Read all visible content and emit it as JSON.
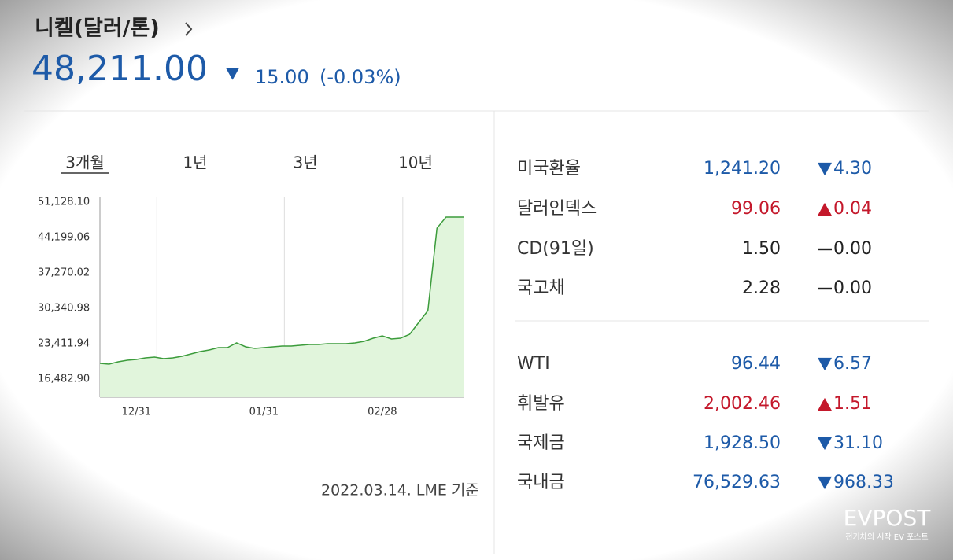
{
  "header": {
    "title": "니켈(달러/톤)",
    "price": "48,211.00",
    "direction": "down",
    "change": "15.00",
    "change_pct": "(-0.03%)"
  },
  "tabs": {
    "items": [
      "3개월",
      "1년",
      "3년",
      "10년"
    ],
    "active": 0
  },
  "chart_data": {
    "type": "line",
    "categories": [
      null,
      null,
      null,
      null,
      "12/31",
      null,
      null,
      null,
      null,
      null,
      null,
      null,
      null,
      null,
      null,
      null,
      null,
      null,
      "01/31",
      null,
      null,
      null,
      null,
      null,
      null,
      null,
      null,
      null,
      null,
      null,
      null,
      "02/28",
      null,
      null,
      null,
      null,
      null,
      null,
      null,
      null,
      null
    ],
    "series": [
      {
        "color": "#3c9c3c",
        "fill": "#e1f5dc",
        "values": [
          19562,
          19408,
          19870,
          20178,
          20332,
          20640,
          20794,
          20486,
          20640,
          20948,
          21410,
          21872,
          22180,
          22642,
          22642,
          23566,
          22796,
          22488,
          22642,
          22796,
          22950,
          22950,
          23104,
          23258,
          23258,
          23412,
          23412,
          23412,
          23566,
          23874,
          24490,
          24952,
          24336,
          24490,
          25258,
          27569,
          29878,
          46046,
          48211,
          48211,
          48211
        ]
      }
    ],
    "ylim": [
      12941,
      52206
    ],
    "yticks": [
      {
        "value": 16482.9,
        "label": "16,482.90"
      },
      {
        "value": 23411.94,
        "label": "23,411.94"
      },
      {
        "value": 30340.98,
        "label": "30,340.98"
      },
      {
        "value": 37270.02,
        "label": "37,270.02"
      },
      {
        "value": 44199.06,
        "label": "44,199.06"
      },
      {
        "value": 51128.1,
        "label": "51,128.10"
      }
    ],
    "grid": "x"
  },
  "footnote": "2022.03.14. LME 기준",
  "table": {
    "groups": [
      [
        {
          "name": "미국환율",
          "value": "1,241.20",
          "direction": "down",
          "change": "4.30"
        },
        {
          "name": "달러인덱스",
          "value": "99.06",
          "direction": "up",
          "change": "0.04"
        },
        {
          "name": "CD(91일)",
          "value": "1.50",
          "direction": "flat",
          "change": "0.00"
        },
        {
          "name": "국고채",
          "value": "2.28",
          "direction": "flat",
          "change": "0.00"
        }
      ],
      [
        {
          "name": "WTI",
          "value": "96.44",
          "direction": "down",
          "change": "6.57"
        },
        {
          "name": "휘발유",
          "value": "2,002.46",
          "direction": "up",
          "change": "1.51"
        },
        {
          "name": "국제금",
          "value": "1,928.50",
          "direction": "down",
          "change": "31.10"
        },
        {
          "name": "국내금",
          "value": "76,529.63",
          "direction": "down",
          "change": "968.33"
        }
      ]
    ]
  },
  "watermark": {
    "brand": "EVPOST",
    "tagline": "전기차의 시작 EV 포스트"
  }
}
